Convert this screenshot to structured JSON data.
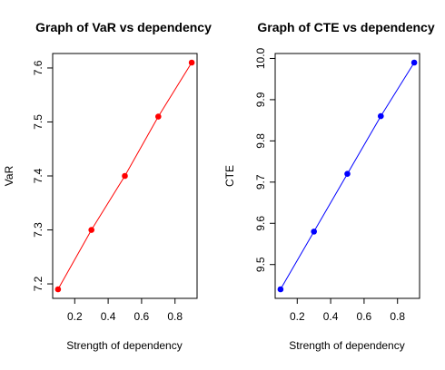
{
  "chart_data": [
    {
      "type": "line",
      "title": "Graph of VaR vs dependency",
      "xlabel": "Strength of dependency",
      "ylabel": "VaR",
      "x": [
        0.1,
        0.3,
        0.5,
        0.7,
        0.9
      ],
      "values": [
        7.19,
        7.3,
        7.4,
        7.51,
        7.61
      ],
      "xlim": [
        0.1,
        0.9
      ],
      "ylim": [
        7.19,
        7.61
      ],
      "xticks": [
        "0.2",
        "0.4",
        "0.6",
        "0.8"
      ],
      "yticks": [
        "7.2",
        "7.3",
        "7.4",
        "7.5",
        "7.6"
      ],
      "color": "#ff0000",
      "markers": true,
      "grid": false
    },
    {
      "type": "line",
      "title": "Graph of CTE vs dependency",
      "xlabel": "Strength of dependency",
      "ylabel": "CTE",
      "x": [
        0.1,
        0.3,
        0.5,
        0.7,
        0.9
      ],
      "values": [
        9.44,
        9.58,
        9.72,
        9.86,
        9.99
      ],
      "xlim": [
        0.1,
        0.9
      ],
      "ylim": [
        9.44,
        9.99
      ],
      "xticks": [
        "0.2",
        "0.4",
        "0.6",
        "0.8"
      ],
      "yticks": [
        "9.5",
        "9.6",
        "9.7",
        "9.8",
        "9.9",
        "10.0"
      ],
      "color": "#0000ff",
      "markers": true,
      "grid": false
    }
  ]
}
